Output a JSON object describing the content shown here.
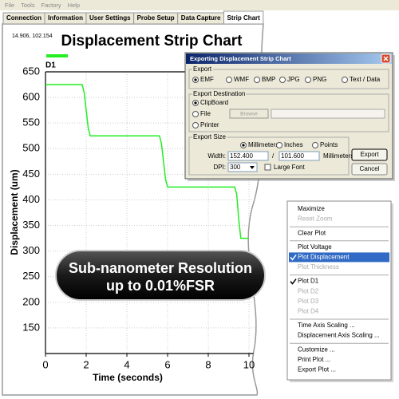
{
  "menu_bar": [
    "File",
    "Tools",
    "Factory",
    "Help"
  ],
  "tabs": {
    "items": [
      "Connection",
      "Information",
      "User Settings",
      "Probe Setup",
      "Data Capture",
      "Strip Chart"
    ],
    "active": 5
  },
  "readout": "14.906, 102.154",
  "chart_data": {
    "type": "line",
    "title": "Displacement Strip Chart",
    "x_label": "Time (seconds)",
    "y_label": "Displacement (um)",
    "x": [
      0,
      1.8,
      1.9,
      2.0,
      2.1,
      2.2,
      5.6,
      5.7,
      5.8,
      5.9,
      6.0,
      9.3,
      9.4,
      9.5,
      9.6,
      10.5
    ],
    "series": [
      {
        "name": "D1",
        "color": "#22ee22",
        "values": [
          625,
          625,
          610,
          575,
          540,
          525,
          525,
          510,
          475,
          440,
          425,
          425,
          410,
          360,
          325,
          325
        ]
      }
    ],
    "xlim": [
      0,
      10.5
    ],
    "ylim": [
      100,
      650
    ],
    "xticks": [
      0,
      2,
      4,
      6,
      8,
      10
    ],
    "yticks": [
      150,
      200,
      250,
      300,
      350,
      400,
      450,
      500,
      550,
      600,
      650
    ],
    "grid": true
  },
  "badge": [
    "Sub-nanometer Resolution",
    "up to 0.01%FSR"
  ],
  "dialog": {
    "title": "Exporting Displacement Strip Chart",
    "export": {
      "label": "Export",
      "options": [
        {
          "label": "EMF",
          "selected": true
        },
        {
          "label": "WMF",
          "selected": false
        },
        {
          "label": "BMP",
          "selected": false
        },
        {
          "label": "JPG",
          "selected": false
        },
        {
          "label": "PNG",
          "selected": false
        },
        {
          "label": "Text / Data",
          "selected": false
        }
      ]
    },
    "destination": {
      "label": "Export Destination",
      "options": [
        {
          "label": "ClipBoard",
          "selected": true
        },
        {
          "label": "File",
          "selected": false
        },
        {
          "label": "Printer",
          "selected": false
        }
      ],
      "browse": "Browse"
    },
    "size": {
      "label": "Export Size",
      "units": [
        {
          "label": "Millimeters",
          "selected": true
        },
        {
          "label": "Inches",
          "selected": false
        },
        {
          "label": "Points",
          "selected": false
        }
      ],
      "width_label": "Width:",
      "width": "152.400",
      "separator": "/",
      "height": "101.600",
      "height_unit": "Millimeters",
      "dpi_label": "DPI:",
      "dpi": "300",
      "large_font": "Large Font"
    },
    "buttons": [
      "Export",
      "Cancel"
    ]
  },
  "context_menu": {
    "groups": [
      [
        {
          "label": "Maximize",
          "checked": false,
          "disabled": false
        },
        {
          "label": "Reset Zoom",
          "checked": false,
          "disabled": true
        }
      ],
      [
        {
          "label": "Clear Plot",
          "checked": false,
          "disabled": false
        }
      ],
      [
        {
          "label": "Plot Voltage",
          "checked": false,
          "disabled": false
        },
        {
          "label": "Plot Displacement",
          "checked": true,
          "disabled": false,
          "highlighted": true
        },
        {
          "label": "Plot Thickness",
          "checked": false,
          "disabled": true
        }
      ],
      [
        {
          "label": "Plot D1",
          "checked": true,
          "disabled": false
        },
        {
          "label": "Plot D2",
          "checked": false,
          "disabled": true
        },
        {
          "label": "Plot D3",
          "checked": false,
          "disabled": true
        },
        {
          "label": "Plot D4",
          "checked": false,
          "disabled": true
        }
      ],
      [
        {
          "label": "Time Axis Scaling ...",
          "checked": false,
          "disabled": false
        },
        {
          "label": "Displacement Axis Scaling ...",
          "checked": false,
          "disabled": false
        }
      ],
      [
        {
          "label": "Customize ...",
          "checked": false,
          "disabled": false
        },
        {
          "label": "Print Plot ...",
          "checked": false,
          "disabled": false
        },
        {
          "label": "Export Plot ...",
          "checked": false,
          "disabled": false
        }
      ]
    ]
  }
}
